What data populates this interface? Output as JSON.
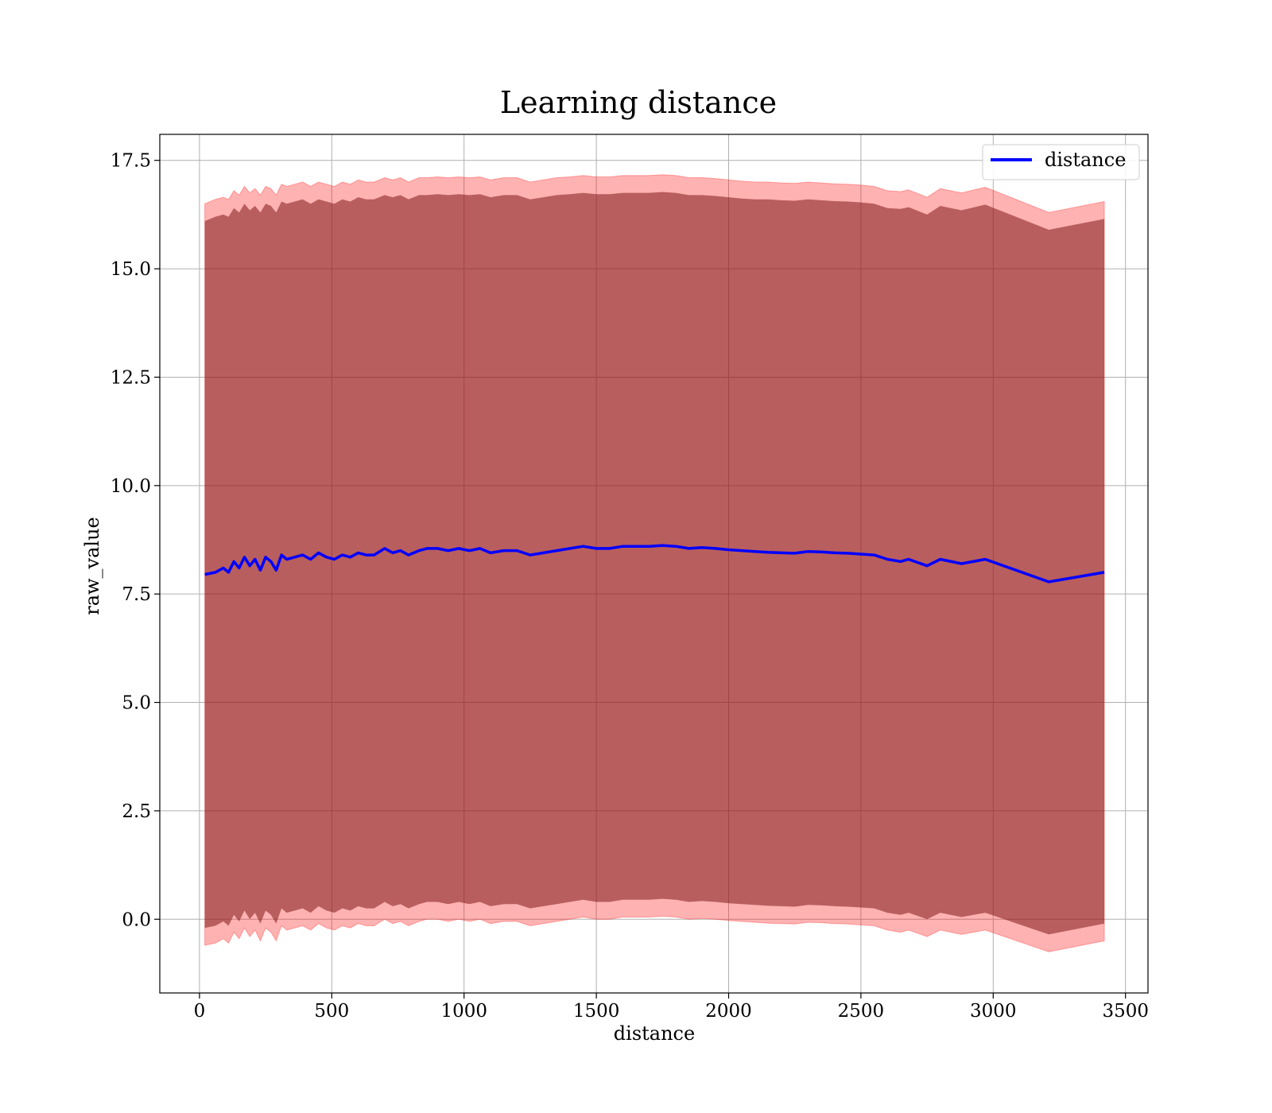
{
  "chart_data": {
    "type": "line",
    "title": "Learning distance",
    "xlabel": "distance",
    "ylabel": "raw_value",
    "xlim": [
      -150,
      3585
    ],
    "ylim": [
      -1.7,
      18.1
    ],
    "grid": true,
    "legend_position": "top-right",
    "x_ticks": [
      0,
      500,
      1000,
      1500,
      2000,
      2500,
      3000,
      3500
    ],
    "x_tick_labels": [
      "0",
      "500",
      "1000",
      "1500",
      "2000",
      "2500",
      "3000",
      "3500"
    ],
    "y_ticks": [
      0,
      2.5,
      5,
      7.5,
      10,
      12.5,
      15,
      17.5
    ],
    "y_tick_labels": [
      "0.0",
      "2.5",
      "5.0",
      "7.5",
      "10.0",
      "12.5",
      "15.0",
      "17.5"
    ],
    "colors": {
      "line": "#0000ff",
      "outer_band": "#ff0000",
      "inner_band": "#7f1a1a",
      "grid": "#b0b0b0"
    },
    "series": [
      {
        "name": "distance",
        "x": [
          20,
          60,
          90,
          110,
          130,
          150,
          170,
          190,
          210,
          230,
          250,
          270,
          290,
          310,
          330,
          360,
          390,
          420,
          450,
          480,
          510,
          540,
          570,
          600,
          630,
          660,
          700,
          730,
          760,
          790,
          830,
          860,
          900,
          940,
          980,
          1020,
          1060,
          1100,
          1150,
          1200,
          1250,
          1300,
          1350,
          1400,
          1450,
          1500,
          1550,
          1600,
          1650,
          1700,
          1750,
          1800,
          1850,
          1900,
          1950,
          2000,
          2050,
          2100,
          2150,
          2200,
          2250,
          2300,
          2350,
          2400,
          2450,
          2500,
          2550,
          2600,
          2650,
          2680,
          2750,
          2800,
          2880,
          2970,
          3210,
          3420
        ],
        "y": [
          7.95,
          8.0,
          8.1,
          8.0,
          8.25,
          8.1,
          8.35,
          8.15,
          8.3,
          8.05,
          8.35,
          8.25,
          8.05,
          8.4,
          8.3,
          8.35,
          8.4,
          8.3,
          8.45,
          8.35,
          8.3,
          8.4,
          8.35,
          8.45,
          8.4,
          8.4,
          8.55,
          8.45,
          8.5,
          8.4,
          8.5,
          8.55,
          8.55,
          8.5,
          8.55,
          8.5,
          8.55,
          8.45,
          8.5,
          8.5,
          8.4,
          8.45,
          8.5,
          8.55,
          8.6,
          8.55,
          8.55,
          8.6,
          8.6,
          8.6,
          8.62,
          8.6,
          8.55,
          8.57,
          8.55,
          8.52,
          8.5,
          8.48,
          8.46,
          8.45,
          8.44,
          8.48,
          8.47,
          8.45,
          8.44,
          8.42,
          8.4,
          8.3,
          8.25,
          8.3,
          8.15,
          8.3,
          8.2,
          8.3,
          7.78,
          8.0
        ],
        "outer_upper": [
          16.5,
          16.6,
          16.65,
          16.6,
          16.8,
          16.7,
          16.9,
          16.75,
          16.85,
          16.7,
          16.9,
          16.85,
          16.7,
          16.95,
          16.9,
          16.95,
          17.0,
          16.9,
          17.0,
          16.95,
          16.9,
          17.0,
          16.95,
          17.05,
          17.0,
          17.0,
          17.1,
          17.05,
          17.1,
          17.0,
          17.1,
          17.1,
          17.12,
          17.1,
          17.12,
          17.1,
          17.12,
          17.05,
          17.1,
          17.1,
          17.0,
          17.05,
          17.1,
          17.12,
          17.15,
          17.12,
          17.12,
          17.15,
          17.15,
          17.15,
          17.17,
          17.15,
          17.1,
          17.1,
          17.08,
          17.05,
          17.02,
          17.0,
          17.0,
          16.98,
          16.97,
          17.0,
          16.98,
          16.96,
          16.95,
          16.93,
          16.9,
          16.8,
          16.78,
          16.82,
          16.65,
          16.85,
          16.75,
          16.88,
          16.3,
          16.55
        ],
        "outer_lower": [
          -0.6,
          -0.55,
          -0.45,
          -0.55,
          -0.3,
          -0.45,
          -0.2,
          -0.4,
          -0.25,
          -0.5,
          -0.2,
          -0.3,
          -0.5,
          -0.15,
          -0.25,
          -0.2,
          -0.15,
          -0.25,
          -0.1,
          -0.2,
          -0.25,
          -0.15,
          -0.2,
          -0.1,
          -0.15,
          -0.15,
          0.0,
          -0.1,
          -0.05,
          -0.15,
          -0.05,
          0.0,
          0.0,
          -0.05,
          0.0,
          -0.05,
          0.0,
          -0.1,
          -0.05,
          -0.05,
          -0.15,
          -0.1,
          -0.05,
          0.0,
          0.05,
          0.0,
          0.0,
          0.05,
          0.05,
          0.05,
          0.07,
          0.05,
          0.0,
          0.02,
          0.0,
          -0.03,
          -0.05,
          -0.07,
          -0.09,
          -0.1,
          -0.11,
          -0.07,
          -0.08,
          -0.1,
          -0.11,
          -0.13,
          -0.15,
          -0.25,
          -0.3,
          -0.25,
          -0.4,
          -0.25,
          -0.35,
          -0.25,
          -0.75,
          -0.5
        ],
        "inner_upper": [
          16.1,
          16.2,
          16.25,
          16.2,
          16.4,
          16.3,
          16.5,
          16.35,
          16.45,
          16.3,
          16.5,
          16.45,
          16.3,
          16.55,
          16.5,
          16.55,
          16.6,
          16.5,
          16.6,
          16.55,
          16.5,
          16.6,
          16.55,
          16.65,
          16.6,
          16.6,
          16.7,
          16.65,
          16.7,
          16.6,
          16.7,
          16.7,
          16.72,
          16.7,
          16.72,
          16.7,
          16.72,
          16.65,
          16.7,
          16.7,
          16.6,
          16.65,
          16.7,
          16.72,
          16.75,
          16.72,
          16.72,
          16.75,
          16.75,
          16.75,
          16.77,
          16.75,
          16.7,
          16.7,
          16.68,
          16.65,
          16.62,
          16.6,
          16.6,
          16.58,
          16.57,
          16.6,
          16.58,
          16.56,
          16.55,
          16.53,
          16.5,
          16.4,
          16.38,
          16.42,
          16.25,
          16.45,
          16.35,
          16.48,
          15.9,
          16.15
        ],
        "inner_lower": [
          -0.2,
          -0.15,
          -0.05,
          -0.15,
          0.1,
          -0.05,
          0.2,
          0.0,
          0.15,
          -0.1,
          0.2,
          0.1,
          -0.1,
          0.25,
          0.15,
          0.2,
          0.25,
          0.15,
          0.3,
          0.2,
          0.15,
          0.25,
          0.2,
          0.3,
          0.25,
          0.25,
          0.4,
          0.3,
          0.35,
          0.25,
          0.35,
          0.4,
          0.4,
          0.35,
          0.4,
          0.35,
          0.4,
          0.3,
          0.35,
          0.35,
          0.25,
          0.3,
          0.35,
          0.4,
          0.45,
          0.4,
          0.4,
          0.45,
          0.45,
          0.45,
          0.47,
          0.45,
          0.4,
          0.42,
          0.4,
          0.37,
          0.35,
          0.33,
          0.31,
          0.3,
          0.29,
          0.33,
          0.32,
          0.3,
          0.29,
          0.27,
          0.25,
          0.15,
          0.1,
          0.15,
          0.0,
          0.15,
          0.05,
          0.15,
          -0.35,
          -0.1
        ]
      }
    ]
  }
}
